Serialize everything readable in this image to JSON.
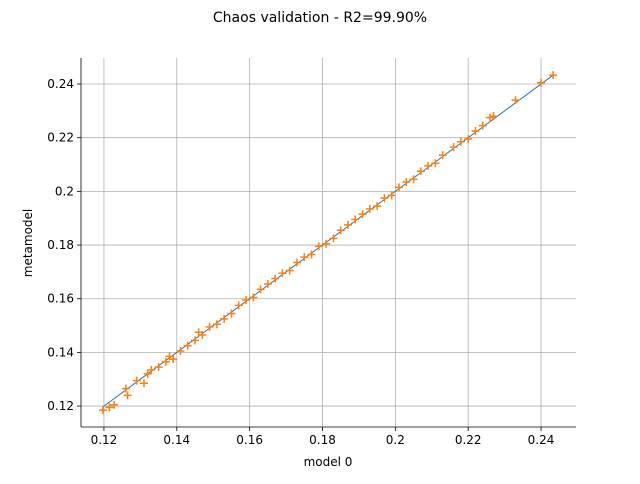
{
  "chart_data": {
    "type": "scatter",
    "title": "Chaos validation - R2=99.90%",
    "x_label": "model 0",
    "y_label": "metamodel",
    "xlim": [
      0.1137,
      0.2496
    ],
    "ylim": [
      0.1122,
      0.2497
    ],
    "xticks": [
      0.12,
      0.14,
      0.16,
      0.18,
      0.2,
      0.22,
      0.24
    ],
    "yticks": [
      0.12,
      0.14,
      0.16,
      0.18,
      0.2,
      0.22,
      0.24
    ],
    "grid": true,
    "series": [
      {
        "kind": "line",
        "color": "#1f77b4",
        "x": [
          0.1197,
          0.2433
        ],
        "values": [
          0.1197,
          0.2433
        ]
      },
      {
        "kind": "marker",
        "color": "#ff7f0e",
        "x": [
          0.1197,
          0.1215,
          0.1228,
          0.126,
          0.1265,
          0.129,
          0.131,
          0.132,
          0.133,
          0.135,
          0.137,
          0.138,
          0.139,
          0.141,
          0.143,
          0.145,
          0.146,
          0.147,
          0.149,
          0.151,
          0.153,
          0.155,
          0.157,
          0.159,
          0.161,
          0.163,
          0.165,
          0.167,
          0.169,
          0.171,
          0.173,
          0.175,
          0.177,
          0.179,
          0.181,
          0.183,
          0.185,
          0.187,
          0.189,
          0.191,
          0.193,
          0.195,
          0.197,
          0.199,
          0.201,
          0.203,
          0.205,
          0.207,
          0.209,
          0.211,
          0.213,
          0.216,
          0.218,
          0.22,
          0.222,
          0.224,
          0.226,
          0.227,
          0.233,
          0.24,
          0.2433
        ],
        "values": [
          0.1185,
          0.1195,
          0.1205,
          0.1265,
          0.124,
          0.1295,
          0.1285,
          0.132,
          0.1335,
          0.1345,
          0.1365,
          0.1385,
          0.1375,
          0.1405,
          0.1425,
          0.1445,
          0.1475,
          0.1465,
          0.1495,
          0.1505,
          0.1525,
          0.1545,
          0.1575,
          0.1595,
          0.1605,
          0.1635,
          0.1655,
          0.1675,
          0.1695,
          0.1705,
          0.1735,
          0.1755,
          0.1765,
          0.1795,
          0.1805,
          0.1825,
          0.1855,
          0.1875,
          0.1895,
          0.1915,
          0.1935,
          0.1945,
          0.1975,
          0.1985,
          0.2015,
          0.2035,
          0.2045,
          0.2075,
          0.2095,
          0.2105,
          0.2135,
          0.2165,
          0.2185,
          0.2195,
          0.2225,
          0.2245,
          0.2275,
          0.228,
          0.234,
          0.2405,
          0.2433
        ]
      }
    ]
  }
}
